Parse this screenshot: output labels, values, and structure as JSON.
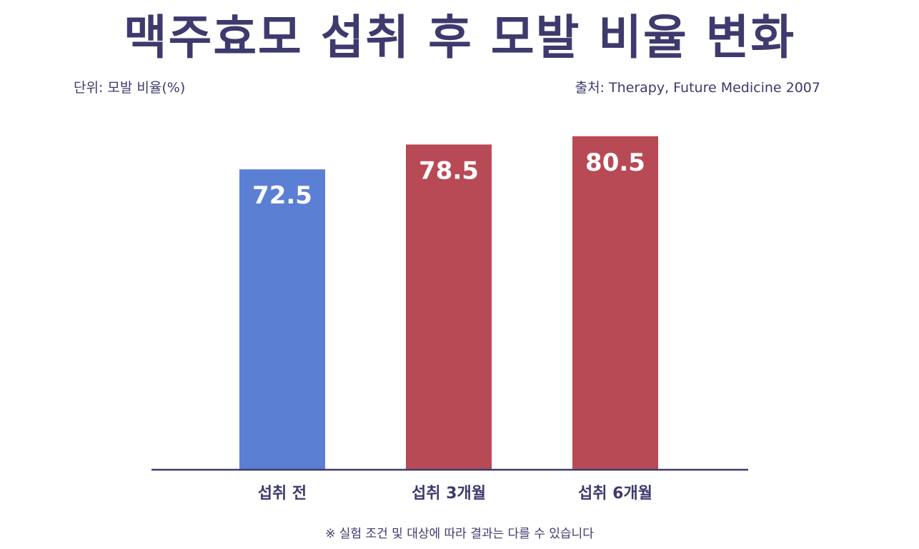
{
  "header": {
    "title": "맥주효모 섭취 후 모발 비율 변화",
    "unit": "단위: 모발 비율(%)",
    "source": "출처: Therapy, Future Medicine 2007"
  },
  "footer": {
    "note": "※ 실험 조건 및 대상에 따라 결과는 다를 수 있습니다"
  },
  "chart_data": {
    "type": "bar",
    "categories": [
      "섭취 전",
      "섭취 3개월",
      "섭취 6개월"
    ],
    "values": [
      72.5,
      78.5,
      80.5
    ],
    "data_labels": [
      "72.5",
      "78.5",
      "80.5"
    ],
    "colors": [
      "#5b7fd3",
      "#b84a55",
      "#b84a55"
    ],
    "axis_color": "#3e3a6e",
    "title": "맥주효모 섭취 후 모발 비율 변화",
    "xlabel": "",
    "ylabel": "",
    "ylim": [
      0,
      81.5
    ],
    "grid": false,
    "legend": "none"
  }
}
